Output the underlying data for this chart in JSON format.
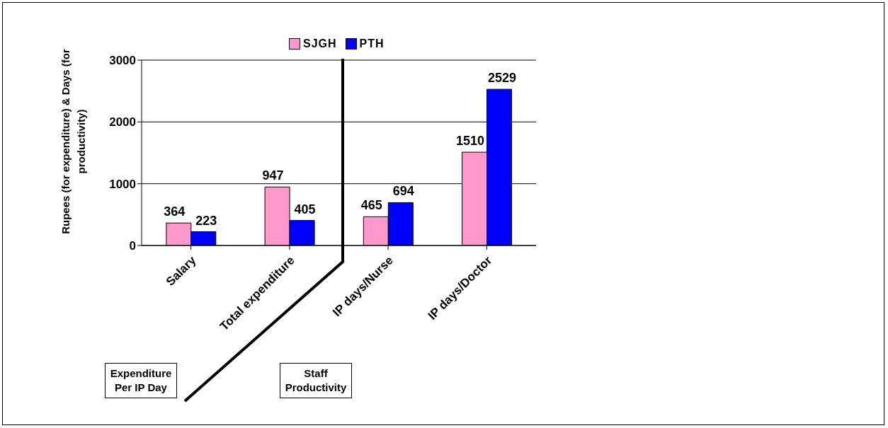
{
  "chart_data": {
    "type": "bar",
    "ylabel": "Rupees (for expenditure) & Days (for productivity)",
    "categories": [
      "Salary",
      "Total expenditure",
      "IP days/Nurse",
      "IP days/Doctor"
    ],
    "series": [
      {
        "name": "SJGH",
        "color": "#ff99cc",
        "values": [
          364,
          947,
          465,
          1510
        ]
      },
      {
        "name": "PTH",
        "color": "#0000ff",
        "values": [
          223,
          405,
          694,
          2529
        ]
      }
    ],
    "ylim": [
      0,
      3000
    ],
    "yticks": [
      0,
      1000,
      2000,
      3000
    ],
    "grid": "y",
    "legend": "top",
    "data_labels": true,
    "annotations": [
      "Expenditure Per IP Day",
      "Staff Productivity"
    ]
  }
}
